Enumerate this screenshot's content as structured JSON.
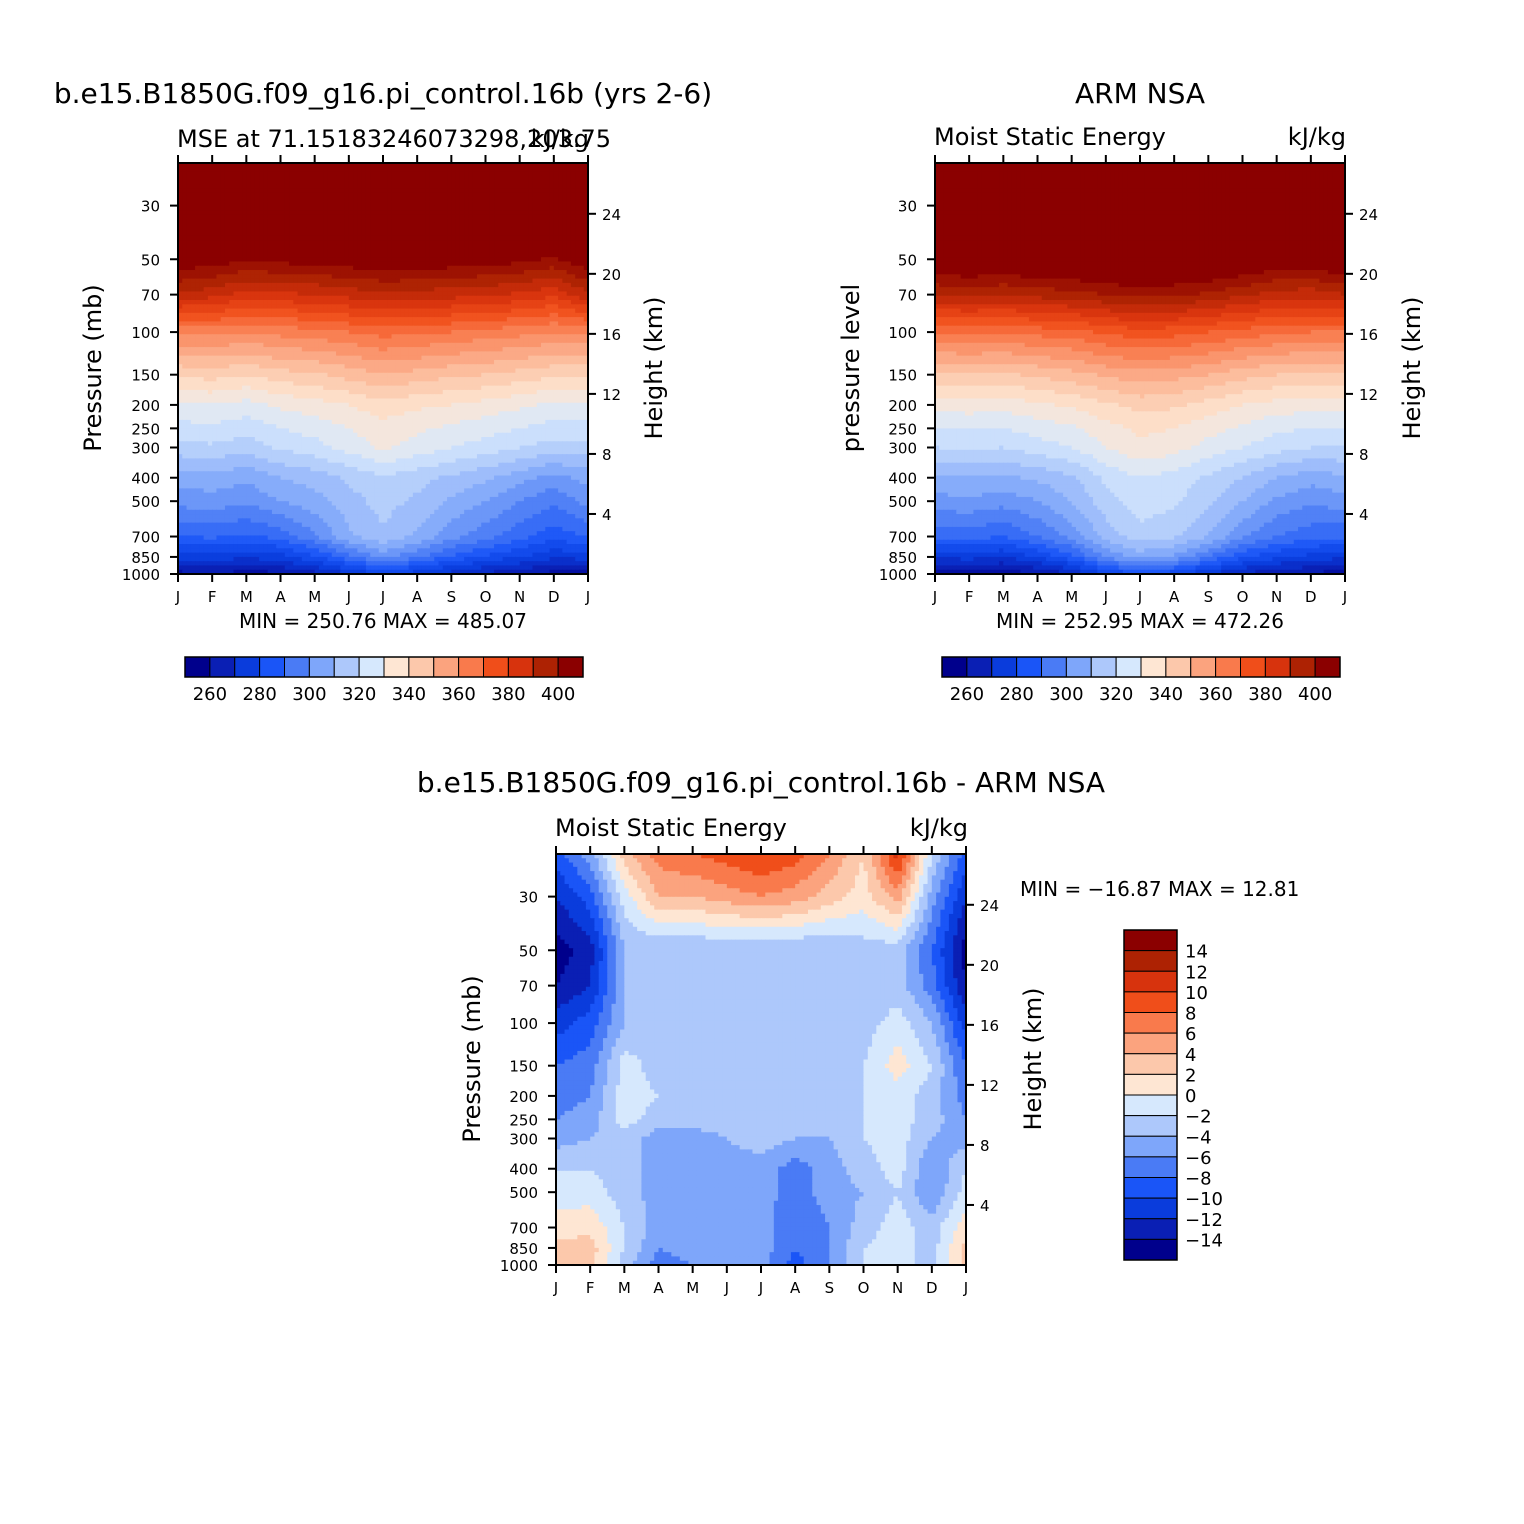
{
  "chart_data": [
    {
      "type": "heatmap",
      "id": "model",
      "title": "b.e15.B1850G.f09_g16.pi_control.16b (yrs 2-6)",
      "subtitle_left": "MSE at 71.15183246073298,203.75",
      "subtitle_right": "kJ/kg",
      "ylabel": "Pressure (mb)",
      "ylabel_right": "Height (km)",
      "months": [
        "J",
        "F",
        "M",
        "A",
        "M",
        "J",
        "J",
        "A",
        "S",
        "O",
        "N",
        "D",
        "J"
      ],
      "pressure_ticks": [
        "30",
        "50",
        "70",
        "100",
        "150",
        "200",
        "250",
        "300",
        "400",
        "500",
        "700",
        "850",
        "1000"
      ],
      "height_ticks": [
        "24",
        "20",
        "16",
        "12",
        "8",
        "4"
      ],
      "min_max": "MIN = 250.76 MAX = 485.07",
      "colorbar_labels": [
        "260",
        "280",
        "300",
        "320",
        "340",
        "360",
        "380",
        "400"
      ],
      "levels": [
        255,
        260,
        265,
        270,
        275,
        280,
        285,
        290,
        295,
        300,
        305,
        310,
        315,
        320,
        325,
        330,
        335,
        340,
        345,
        350,
        355,
        360,
        365,
        370,
        375,
        380,
        385,
        390,
        395,
        400,
        405
      ],
      "profiles_p": [
        1000,
        850,
        700,
        500,
        400,
        300,
        250,
        200,
        150,
        100,
        70,
        50,
        30,
        20
      ],
      "profiles": [
        [
          258,
          272,
          285,
          297,
          302,
          313,
          318,
          324,
          336,
          356,
          384,
          400,
          450,
          485
        ],
        [
          260,
          273,
          286,
          298,
          303,
          314,
          319,
          325,
          337,
          357,
          382,
          398,
          448,
          482
        ],
        [
          257,
          271,
          284,
          296,
          301,
          312,
          317,
          323,
          335,
          355,
          378,
          396,
          445,
          480
        ],
        [
          259,
          273,
          287,
          300,
          305,
          316,
          320,
          326,
          338,
          357,
          379,
          397,
          446,
          481
        ],
        [
          263,
          279,
          294,
          303,
          307,
          318,
          322,
          328,
          339,
          358,
          380,
          398,
          447,
          482
        ],
        [
          270,
          288,
          304,
          308,
          311,
          322,
          325,
          330,
          342,
          360,
          382,
          399,
          448,
          483
        ],
        [
          275,
          297,
          309,
          312,
          314,
          326,
          328,
          333,
          345,
          362,
          384,
          400,
          449,
          484
        ],
        [
          272,
          291,
          304,
          309,
          312,
          323,
          326,
          331,
          343,
          361,
          383,
          400,
          449,
          484
        ],
        [
          268,
          284,
          297,
          304,
          309,
          320,
          324,
          330,
          341,
          360,
          382,
          399,
          448,
          483
        ],
        [
          264,
          279,
          292,
          300,
          306,
          318,
          322,
          328,
          340,
          358,
          381,
          398,
          447,
          482
        ],
        [
          261,
          275,
          287,
          295,
          302,
          315,
          320,
          326,
          338,
          357,
          379,
          397,
          446,
          481
        ],
        [
          258,
          271,
          282,
          291,
          298,
          313,
          318,
          324,
          336,
          355,
          376,
          394,
          443,
          478
        ],
        [
          258,
          272,
          285,
          297,
          302,
          313,
          318,
          324,
          336,
          356,
          384,
          400,
          450,
          485
        ]
      ]
    },
    {
      "type": "heatmap",
      "id": "obs",
      "title": "ARM NSA",
      "subtitle_left": "Moist Static Energy",
      "subtitle_right": "kJ/kg",
      "ylabel": "pressure level",
      "ylabel_right": "Height (km)",
      "months": [
        "J",
        "F",
        "M",
        "A",
        "M",
        "J",
        "J",
        "A",
        "S",
        "O",
        "N",
        "D",
        "J"
      ],
      "pressure_ticks": [
        "30",
        "50",
        "70",
        "100",
        "150",
        "200",
        "250",
        "300",
        "400",
        "500",
        "700",
        "850",
        "1000"
      ],
      "height_ticks": [
        "24",
        "20",
        "16",
        "12",
        "8",
        "4"
      ],
      "min_max": "MIN = 252.95 MAX = 472.26",
      "colorbar_labels": [
        "260",
        "280",
        "300",
        "320",
        "340",
        "360",
        "380",
        "400"
      ],
      "levels": [
        255,
        260,
        265,
        270,
        275,
        280,
        285,
        290,
        295,
        300,
        305,
        310,
        315,
        320,
        325,
        330,
        335,
        340,
        345,
        350,
        355,
        360,
        365,
        370,
        375,
        380,
        385,
        390,
        395,
        400,
        405
      ],
      "profiles_p": [
        1000,
        850,
        700,
        500,
        400,
        300,
        250,
        200,
        150,
        100,
        70,
        50,
        30,
        20
      ],
      "profiles": [
        [
          257,
          271,
          286,
          298,
          304,
          315,
          320,
          327,
          339,
          360,
          385,
          403,
          450,
          472
        ],
        [
          258,
          272,
          287,
          299,
          305,
          316,
          320,
          328,
          340,
          361,
          386,
          404,
          450,
          472
        ],
        [
          256,
          270,
          285,
          297,
          304,
          315,
          320,
          327,
          339,
          360,
          385,
          403,
          449,
          471
        ],
        [
          260,
          275,
          290,
          300,
          306,
          318,
          322,
          329,
          341,
          362,
          387,
          404,
          450,
          472
        ],
        [
          265,
          283,
          297,
          305,
          309,
          320,
          324,
          331,
          343,
          363,
          388,
          405,
          451,
          472
        ],
        [
          275,
          296,
          307,
          313,
          316,
          325,
          328,
          334,
          346,
          366,
          390,
          406,
          452,
          472
        ],
        [
          280,
          302,
          313,
          318,
          320,
          329,
          331,
          337,
          348,
          368,
          392,
          407,
          452,
          472
        ],
        [
          277,
          299,
          311,
          316,
          318,
          327,
          330,
          336,
          347,
          367,
          391,
          406,
          452,
          472
        ],
        [
          270,
          290,
          305,
          311,
          314,
          323,
          327,
          333,
          345,
          365,
          389,
          405,
          451,
          472
        ],
        [
          264,
          281,
          296,
          305,
          310,
          320,
          324,
          330,
          342,
          363,
          386,
          403,
          450,
          471
        ],
        [
          261,
          276,
          290,
          299,
          305,
          317,
          321,
          328,
          340,
          361,
          383,
          400,
          448,
          470
        ],
        [
          259,
          273,
          287,
          296,
          302,
          315,
          320,
          327,
          339,
          360,
          382,
          400,
          448,
          470
        ],
        [
          257,
          271,
          286,
          298,
          304,
          315,
          320,
          327,
          339,
          360,
          385,
          403,
          450,
          472
        ]
      ]
    },
    {
      "type": "heatmap",
      "id": "diff",
      "title": "b.e15.B1850G.f09_g16.pi_control.16b - ARM NSA",
      "subtitle_left": "Moist Static Energy",
      "subtitle_right": "kJ/kg",
      "ylabel": "Pressure (mb)",
      "ylabel_right": "Height (km)",
      "months": [
        "J",
        "F",
        "M",
        "A",
        "M",
        "J",
        "J",
        "A",
        "S",
        "O",
        "N",
        "D",
        "J"
      ],
      "pressure_ticks": [
        "30",
        "50",
        "70",
        "100",
        "150",
        "200",
        "250",
        "300",
        "400",
        "500",
        "700",
        "850",
        "1000"
      ],
      "height_ticks": [
        "24",
        "20",
        "16",
        "12",
        "8",
        "4"
      ],
      "min_max": "MIN = −16.87 MAX =   12.81",
      "colorbar_labels": [
        "14",
        "12",
        "10",
        "8",
        "6",
        "4",
        "2",
        "0",
        "−2",
        "−4",
        "−6",
        "−8",
        "−10",
        "−12",
        "−14"
      ],
      "levels": [
        -14,
        -12,
        -10,
        -8,
        -6,
        -4,
        -2,
        0,
        2,
        4,
        6,
        8,
        10,
        12,
        14
      ],
      "profiles_p": [
        1000,
        850,
        700,
        500,
        400,
        300,
        250,
        200,
        150,
        100,
        70,
        50,
        30,
        20
      ],
      "profiles": [
        [
          2.5,
          2.5,
          1,
          -1,
          -2,
          -5,
          -6,
          -7,
          -8,
          -11,
          -14,
          -15,
          -12,
          -9
        ],
        [
          3,
          3,
          1.5,
          -1,
          -2,
          -4,
          -5,
          -6,
          -7,
          -9,
          -12,
          -13,
          -9,
          -5
        ],
        [
          -3,
          -2,
          -2,
          -3,
          -3,
          -3,
          -1,
          -1,
          -1,
          -4,
          -4,
          -4,
          -1,
          3
        ],
        [
          -7,
          -6,
          -5,
          -5,
          -5,
          -5,
          -3,
          -2,
          -3,
          -2,
          -4,
          -4,
          4,
          7
        ],
        [
          -6,
          -5,
          -5,
          -5,
          -5,
          -5,
          -3,
          -3,
          -3,
          -3,
          -4,
          -4,
          4,
          8
        ],
        [
          -6,
          -5,
          -5,
          -6,
          -5,
          -4,
          -3,
          -3,
          -3,
          -3,
          -4,
          -4,
          5,
          9
        ],
        [
          -5,
          -5,
          -5,
          -5,
          -5,
          -3,
          -3,
          -3,
          -3,
          -3,
          -4,
          -4,
          6,
          10
        ],
        [
          -9,
          -8,
          -8,
          -7,
          -7,
          -4,
          -4,
          -3,
          -3,
          -3,
          -4,
          -4,
          5,
          9
        ],
        [
          -6,
          -6,
          -6,
          -5,
          -5,
          -4,
          -3,
          -3,
          -3,
          -3,
          -4,
          -4,
          3,
          6
        ],
        [
          -2,
          -2,
          -3,
          -4,
          -3,
          -2,
          -2,
          -2,
          -2,
          -3,
          -4,
          -3,
          1,
          2
        ],
        [
          -1,
          -1,
          -1,
          -2,
          -1,
          -1,
          -1,
          -1,
          1,
          -1,
          -3,
          -3,
          5,
          11
        ],
        [
          -3,
          -3,
          -3,
          -6,
          -6,
          -4,
          -3,
          -3,
          -2,
          -4,
          -7,
          -8,
          -5,
          -2
        ],
        [
          2.5,
          2.5,
          1,
          -1,
          -2,
          -5,
          -6,
          -7,
          -8,
          -11,
          -14,
          -15,
          -12,
          -9
        ]
      ]
    }
  ]
}
